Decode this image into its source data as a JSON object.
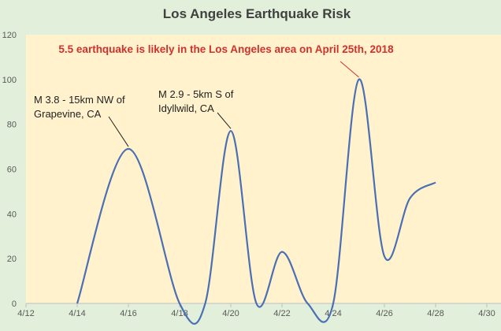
{
  "chart_data": {
    "type": "line",
    "title": "Los Angeles Earthquake Risk",
    "xlabel": "",
    "ylabel": "",
    "x_ticks": [
      "4/12",
      "4/14",
      "4/16",
      "4/18",
      "4/20",
      "4/22",
      "4/24",
      "4/26",
      "4/28",
      "4/30"
    ],
    "y_ticks": [
      0,
      20,
      40,
      60,
      80,
      100,
      120
    ],
    "xlim": [
      "4/12",
      "4/30"
    ],
    "ylim": [
      0,
      120
    ],
    "grid": false,
    "series": [
      {
        "color": "#4a6fb5",
        "smooth": true,
        "points": [
          {
            "x": "4/14",
            "y": 0
          },
          {
            "x": "4/16",
            "y": 69
          },
          {
            "x": "4/18",
            "y": 0
          },
          {
            "x": "4/19",
            "y": 0
          },
          {
            "x": "4/20",
            "y": 77
          },
          {
            "x": "4/21",
            "y": 0
          },
          {
            "x": "4/22",
            "y": 23
          },
          {
            "x": "4/23",
            "y": 0
          },
          {
            "x": "4/24",
            "y": 0
          },
          {
            "x": "4/25",
            "y": 100
          },
          {
            "x": "4/26",
            "y": 21
          },
          {
            "x": "4/27",
            "y": 47
          },
          {
            "x": "4/28",
            "y": 54
          }
        ]
      }
    ],
    "annotations": [
      {
        "lines": [
          "5.5 earthquake is likely in the Los Angeles area on April 25th, 2018"
        ],
        "color": "#d0312d",
        "bold": true,
        "x": "4/25",
        "y": 100
      },
      {
        "lines": [
          "M 3.8 - 15km NW of",
          "Grapevine, CA"
        ],
        "color": "#222222",
        "bold": false,
        "x": "4/16",
        "y": 69
      },
      {
        "lines": [
          "M 2.9 - 5km S of",
          "Idyllwild, CA"
        ],
        "color": "#222222",
        "bold": false,
        "x": "4/20",
        "y": 77
      }
    ]
  },
  "colors": {
    "background": "#e2efda",
    "plot_area": "#fff2cc",
    "axis": "#bfbfbf",
    "tick_label": "#595959",
    "title": "#404040"
  }
}
